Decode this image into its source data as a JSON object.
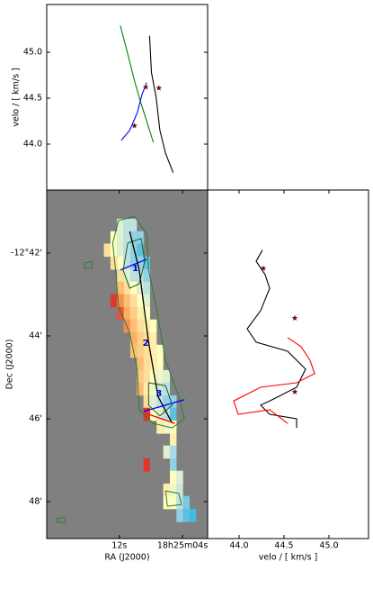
{
  "chart_data": [
    {
      "type": "line",
      "ylabel": "velo / [ km/s ]",
      "xlim": [
        21.2,
        0.82
      ],
      "ylim": [
        43.5,
        45.52
      ],
      "yticks": [
        {
          "value": 44,
          "label": "44.0"
        },
        {
          "value": 44.5,
          "label": "44.5"
        },
        {
          "value": 45,
          "label": "45.0"
        }
      ],
      "series": [
        {
          "color": "#008000",
          "x": [
            11.88,
            10.93,
            10.09,
            9.25,
            8.54,
            7.7
          ],
          "values": [
            45.29,
            44.98,
            44.69,
            44.44,
            44.25,
            44.02
          ]
        },
        {
          "color": "#0000ff",
          "x": [
            11.76,
            10.69,
            9.73,
            9.13,
            8.54
          ],
          "values": [
            44.04,
            44.15,
            44.34,
            44.54,
            44.67
          ]
        },
        {
          "color": "#000000",
          "x": [
            8.18,
            7.94,
            7.34,
            6.87,
            6.15,
            5.19
          ],
          "values": [
            45.18,
            44.78,
            44.51,
            44.15,
            43.9,
            43.69
          ]
        },
        {
          "color": "#6b0f1a",
          "mark": "star",
          "x": [
            10.09,
            8.66,
            6.99
          ],
          "values": [
            44.2,
            44.62,
            44.61
          ]
        }
      ]
    },
    {
      "type": "heatmap",
      "xlabel": "RA (J2000)",
      "ylabel": "Dec (J2000)",
      "background": "#808080",
      "xlim": [
        21.2,
        0.82
      ],
      "ylim": [
        -48.89,
        -40.48
      ],
      "clim": [
        44.0,
        45.0
      ],
      "xticks": [
        {
          "value": 12,
          "label": "12s"
        },
        {
          "value": 4,
          "label": "18h25m04s"
        }
      ],
      "yticks": [
        {
          "value": -42,
          "label": "-12°42'"
        },
        {
          "value": -44,
          "label": "44'"
        },
        {
          "value": -46,
          "label": "46'"
        },
        {
          "value": -48,
          "label": "48'"
        }
      ],
      "cells": [
        [
          11.88,
          -41.33,
          44.4
        ],
        [
          11.04,
          -41.33,
          44.3
        ],
        [
          10.21,
          -41.33,
          44.3
        ],
        [
          12.72,
          -41.63,
          44.5
        ],
        [
          11.88,
          -41.63,
          44.4
        ],
        [
          11.04,
          -41.63,
          44.3
        ],
        [
          10.21,
          -41.63,
          44.2
        ],
        [
          9.37,
          -41.63,
          44.2
        ],
        [
          13.55,
          -41.93,
          44.6
        ],
        [
          12.72,
          -41.93,
          44.5
        ],
        [
          11.88,
          -41.93,
          44.4
        ],
        [
          11.04,
          -41.93,
          44.3
        ],
        [
          10.21,
          -41.93,
          44.2
        ],
        [
          9.37,
          -41.93,
          44.1
        ],
        [
          12.72,
          -42.24,
          44.6
        ],
        [
          11.88,
          -42.24,
          44.5
        ],
        [
          11.04,
          -42.24,
          44.3
        ],
        [
          10.21,
          -42.24,
          44.2
        ],
        [
          9.37,
          -42.24,
          44.2
        ],
        [
          8.54,
          -42.24,
          44.1
        ],
        [
          11.88,
          -42.54,
          44.6
        ],
        [
          11.04,
          -42.54,
          44.4
        ],
        [
          10.21,
          -42.54,
          44.3
        ],
        [
          9.37,
          -42.54,
          44.3
        ],
        [
          8.54,
          -42.54,
          44.2
        ],
        [
          11.88,
          -42.85,
          44.7
        ],
        [
          11.04,
          -42.85,
          44.6
        ],
        [
          10.21,
          -42.85,
          44.5
        ],
        [
          9.37,
          -42.85,
          44.4
        ],
        [
          8.54,
          -42.85,
          44.3
        ],
        [
          12.72,
          -43.15,
          44.95
        ],
        [
          11.88,
          -43.15,
          44.8
        ],
        [
          11.04,
          -43.15,
          44.7
        ],
        [
          10.21,
          -43.15,
          44.6
        ],
        [
          9.37,
          -43.15,
          44.5
        ],
        [
          8.54,
          -43.15,
          44.4
        ],
        [
          11.88,
          -43.46,
          44.9
        ],
        [
          11.04,
          -43.46,
          44.75
        ],
        [
          10.21,
          -43.46,
          44.65
        ],
        [
          9.37,
          -43.46,
          44.55
        ],
        [
          8.54,
          -43.46,
          44.5
        ],
        [
          11.04,
          -43.76,
          44.8
        ],
        [
          10.21,
          -43.76,
          44.7
        ],
        [
          9.37,
          -43.76,
          44.6
        ],
        [
          8.54,
          -43.76,
          44.55
        ],
        [
          7.7,
          -43.76,
          44.5
        ],
        [
          10.21,
          -44.07,
          44.75
        ],
        [
          9.37,
          -44.07,
          44.65
        ],
        [
          8.54,
          -44.07,
          44.6
        ],
        [
          7.7,
          -44.07,
          44.55
        ],
        [
          10.21,
          -44.37,
          44.7
        ],
        [
          9.37,
          -44.37,
          44.65
        ],
        [
          8.54,
          -44.37,
          44.6
        ],
        [
          7.7,
          -44.37,
          44.55
        ],
        [
          6.87,
          -44.37,
          44.5
        ],
        [
          9.37,
          -44.67,
          44.7
        ],
        [
          8.54,
          -44.67,
          44.6
        ],
        [
          7.7,
          -44.67,
          44.55
        ],
        [
          6.87,
          -44.67,
          44.5
        ],
        [
          9.37,
          -44.98,
          44.65
        ],
        [
          8.54,
          -44.98,
          44.6
        ],
        [
          7.7,
          -44.98,
          44.5
        ],
        [
          6.87,
          -44.98,
          44.45
        ],
        [
          6.03,
          -44.98,
          44.4
        ],
        [
          9.37,
          -45.28,
          44.7
        ],
        [
          8.54,
          -45.28,
          44.55
        ],
        [
          7.7,
          -45.28,
          44.45
        ],
        [
          6.87,
          -45.28,
          44.35
        ],
        [
          6.03,
          -45.28,
          44.3
        ],
        [
          8.54,
          -45.59,
          44.6
        ],
        [
          7.7,
          -45.59,
          44.4
        ],
        [
          6.87,
          -45.59,
          44.3
        ],
        [
          6.03,
          -45.59,
          44.2
        ],
        [
          5.19,
          -45.59,
          44.2
        ],
        [
          8.54,
          -45.89,
          44.95
        ],
        [
          7.7,
          -45.89,
          44.5
        ],
        [
          6.87,
          -45.89,
          44.4
        ],
        [
          6.03,
          -45.89,
          44.3
        ],
        [
          5.19,
          -45.89,
          44.1
        ],
        [
          6.87,
          -46.2,
          44.55
        ],
        [
          6.03,
          -46.2,
          44.45
        ],
        [
          5.19,
          -46.2,
          44.5
        ],
        [
          5.19,
          -46.5,
          44.55
        ],
        [
          6.03,
          -46.8,
          44.4
        ],
        [
          5.19,
          -46.8,
          44.25
        ],
        [
          8.54,
          -47.11,
          44.95
        ],
        [
          5.19,
          -47.11,
          44.2
        ],
        [
          5.19,
          -47.41,
          44.5
        ],
        [
          4.36,
          -47.41,
          44.4
        ],
        [
          6.03,
          -47.72,
          44.55
        ],
        [
          5.19,
          -47.72,
          44.45
        ],
        [
          4.36,
          -47.72,
          44.35
        ],
        [
          6.03,
          -48.02,
          44.5
        ],
        [
          5.19,
          -48.02,
          44.5
        ],
        [
          4.36,
          -48.02,
          44.3
        ],
        [
          3.52,
          -48.02,
          44.15
        ],
        [
          4.36,
          -48.33,
          44.2
        ],
        [
          3.52,
          -48.33,
          44.1
        ],
        [
          2.69,
          -48.33,
          44.05
        ]
      ],
      "contours": [
        {
          "color": "#2e7d32",
          "points": [
            [
              12.12,
              -41.22
            ],
            [
              10.09,
              -41.11
            ],
            [
              8.54,
              -41.54
            ],
            [
              8.3,
              -42.41
            ],
            [
              7.34,
              -43.28
            ],
            [
              6.15,
              -44.59
            ],
            [
              4.48,
              -45.46
            ],
            [
              3.76,
              -46.0
            ],
            [
              5.31,
              -46.22
            ],
            [
              7.7,
              -46.11
            ],
            [
              9.49,
              -45.78
            ],
            [
              9.73,
              -44.8
            ],
            [
              10.69,
              -43.93
            ],
            [
              12.12,
              -43.28
            ],
            [
              12.48,
              -42.41
            ],
            [
              12.84,
              -41.76
            ]
          ]
        },
        {
          "color": "#1b5e20",
          "points": [
            [
              10.93,
              -41.76
            ],
            [
              9.25,
              -41.65
            ],
            [
              8.78,
              -42.2
            ],
            [
              9.49,
              -42.74
            ],
            [
              10.69,
              -42.85
            ],
            [
              11.52,
              -42.41
            ]
          ]
        },
        {
          "color": "#1b5e20",
          "points": [
            [
              8.3,
              -45.13
            ],
            [
              6.15,
              -45.2
            ],
            [
              5.31,
              -45.67
            ],
            [
              6.87,
              -45.93
            ],
            [
              8.3,
              -45.67
            ]
          ]
        },
        {
          "color": "#2e7d32",
          "points": [
            [
              6.15,
              -47.74
            ],
            [
              4.48,
              -47.8
            ],
            [
              4.12,
              -48.07
            ],
            [
              5.91,
              -48.11
            ]
          ]
        },
        {
          "color": "#2e7d32",
          "points": [
            [
              16.42,
              -42.24
            ],
            [
              15.46,
              -42.2
            ],
            [
              15.46,
              -42.37
            ],
            [
              16.42,
              -42.37
            ]
          ]
        },
        {
          "color": "#2e7d32",
          "points": [
            [
              19.88,
              -48.39
            ],
            [
              18.81,
              -48.39
            ],
            [
              18.81,
              -48.5
            ],
            [
              19.88,
              -48.5
            ]
          ]
        }
      ],
      "cuts": [
        {
          "color": "#0000ff",
          "points": [
            [
              11.88,
              -42.41
            ],
            [
              8.54,
              -42.15
            ]
          ]
        },
        {
          "color": "#000000",
          "points": [
            [
              10.69,
              -41.48
            ],
            [
              9.49,
              -42.41
            ],
            [
              8.3,
              -44.15
            ],
            [
              7.1,
              -45.46
            ],
            [
              5.31,
              -46.11
            ]
          ]
        },
        {
          "color": "#0000ff",
          "points": [
            [
              8.9,
              -45.82
            ],
            [
              3.76,
              -45.54
            ]
          ]
        },
        {
          "color": "#ff0000",
          "points": [
            [
              8.3,
              -45.89
            ],
            [
              4.96,
              -46.11
            ]
          ]
        }
      ],
      "annotations": [
        {
          "text": "1",
          "x": 9.97,
          "y": -42.37
        },
        {
          "text": "2",
          "x": 8.66,
          "y": -44.17
        },
        {
          "text": "3",
          "x": 6.99,
          "y": -45.39
        }
      ]
    },
    {
      "type": "line",
      "orientation": "horizontal",
      "xlabel": "velo / [ km/s ]",
      "xlim": [
        43.65,
        45.44
      ],
      "ylim": [
        -48.89,
        -40.48
      ],
      "xticks": [
        {
          "value": 44,
          "label": "44.0"
        },
        {
          "value": 44.5,
          "label": "44.5"
        },
        {
          "value": 45,
          "label": "45.0"
        }
      ],
      "series": [
        {
          "color": "#000000",
          "y": [
            -41.93,
            -42.2,
            -42.52,
            -42.85,
            -43.39,
            -43.83,
            -44.15,
            -44.37,
            -44.8,
            -45.24,
            -45.57,
            -45.67,
            -45.89,
            -46.0,
            -46.22
          ],
          "values": [
            44.26,
            44.19,
            44.29,
            44.34,
            44.24,
            44.09,
            44.19,
            44.54,
            44.74,
            44.64,
            44.34,
            44.24,
            44.34,
            44.64,
            44.64
          ]
        },
        {
          "color": "#ff0000",
          "y": [
            -44.04,
            -44.26,
            -44.59,
            -44.91,
            -45.13,
            -45.24,
            -45.57,
            -45.89,
            -45.78,
            -46.11
          ],
          "values": [
            44.54,
            44.69,
            44.79,
            44.84,
            44.64,
            44.24,
            43.94,
            43.99,
            44.34,
            44.54
          ]
        },
        {
          "color": "#6b0f1a",
          "mark": "star",
          "y": [
            -42.37,
            -43.57,
            -45.35
          ],
          "values": [
            44.27,
            44.62,
            44.62
          ]
        }
      ]
    }
  ]
}
